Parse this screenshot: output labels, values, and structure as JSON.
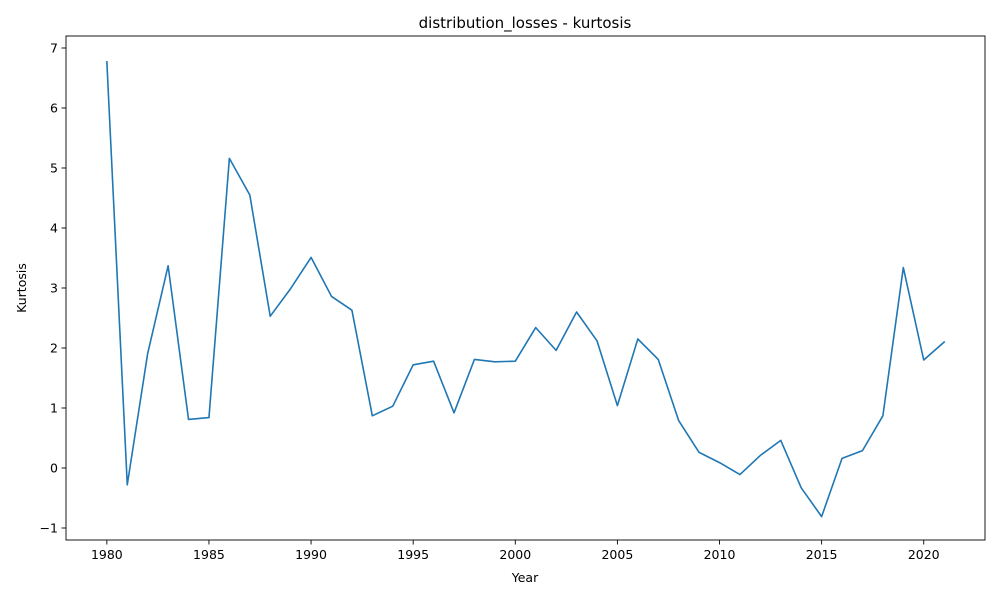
{
  "chart_data": {
    "type": "line",
    "title": "distribution_losses - kurtosis",
    "xlabel": "Year",
    "ylabel": "Kurtosis",
    "xlim": [
      1978,
      2023
    ],
    "ylim": [
      -1.2,
      7.2
    ],
    "xticks": [
      1980,
      1985,
      1990,
      1995,
      2000,
      2005,
      2010,
      2015,
      2020
    ],
    "yticks": [
      -1,
      0,
      1,
      2,
      3,
      4,
      5,
      6,
      7
    ],
    "grid": false,
    "legend": "none",
    "series": [
      {
        "color": "#1f77b4",
        "x": [
          1980,
          1981,
          1982,
          1983,
          1984,
          1985,
          1986,
          1987,
          1988,
          1989,
          1990,
          1991,
          1992,
          1993,
          1994,
          1995,
          1996,
          1997,
          1998,
          1999,
          2000,
          2001,
          2002,
          2003,
          2004,
          2005,
          2006,
          2007,
          2008,
          2009,
          2010,
          2011,
          2012,
          2013,
          2014,
          2015,
          2016,
          2017,
          2018,
          2019,
          2020,
          2021
        ],
        "y": [
          6.77,
          -0.28,
          1.91,
          3.37,
          0.81,
          0.84,
          5.16,
          4.55,
          2.53,
          2.99,
          3.51,
          2.86,
          2.63,
          0.87,
          1.03,
          1.72,
          1.78,
          0.92,
          1.81,
          1.77,
          1.78,
          2.34,
          1.96,
          2.6,
          2.12,
          1.04,
          2.15,
          1.81,
          0.79,
          0.26,
          0.09,
          -0.11,
          0.21,
          0.46,
          -0.33,
          -0.81,
          0.16,
          0.29,
          0.87,
          3.34,
          1.8,
          2.1
        ]
      }
    ]
  }
}
